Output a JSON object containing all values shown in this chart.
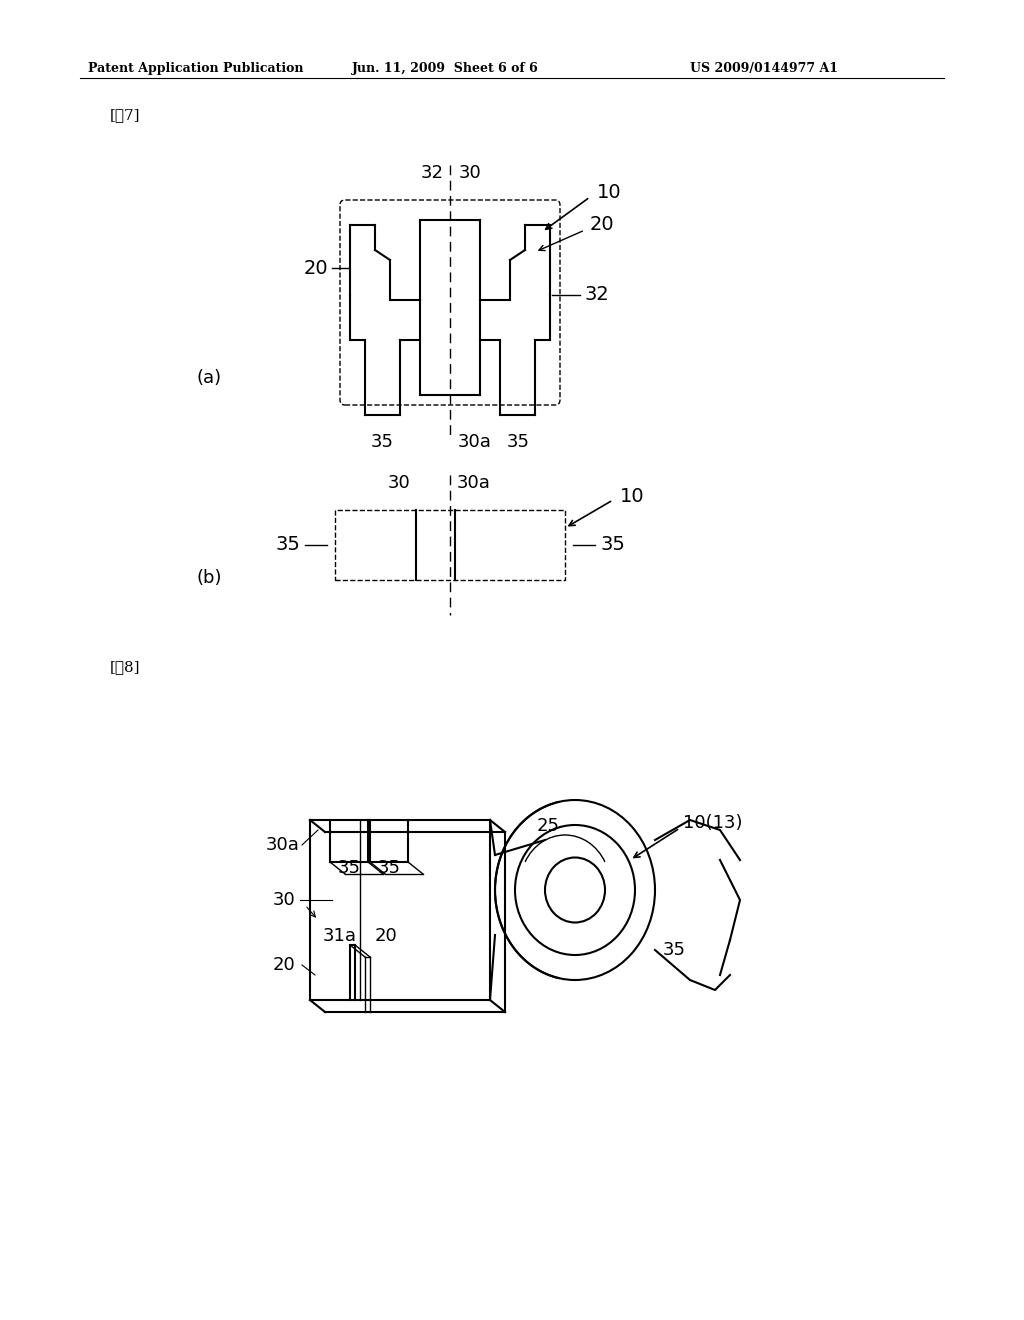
{
  "bg_color": "#ffffff",
  "header_left": "Patent Application Publication",
  "header_mid": "Jun. 11, 2009  Sheet 6 of 6",
  "header_right": "US 2009/0144977 A1",
  "fig7_label": "[図7]",
  "fig8_label": "[図8]",
  "label_a": "(a)",
  "label_b": "(b)"
}
